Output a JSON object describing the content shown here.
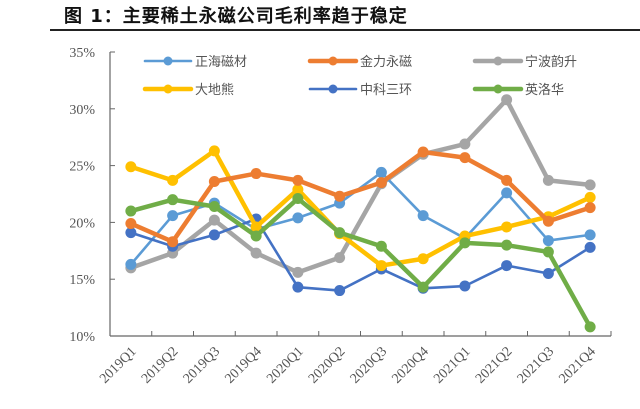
{
  "title": "图 1：主要稀土永磁公司毛利率趋于稳定",
  "chart_data": {
    "type": "line",
    "title": "主要稀土永磁公司毛利率趋于稳定",
    "xlabel": "",
    "ylabel": "",
    "ylim": [
      10,
      35
    ],
    "yticks": [
      "10%",
      "15%",
      "20%",
      "25%",
      "30%",
      "35%"
    ],
    "grid": false,
    "legend_position": "top",
    "categories": [
      "2019Q1",
      "2019Q2",
      "2019Q3",
      "2019Q4",
      "2020Q1",
      "2020Q2",
      "2020Q3",
      "2020Q4",
      "2021Q1",
      "2021Q2",
      "2021Q3",
      "2021Q4"
    ],
    "series": [
      {
        "name": "正海磁材",
        "color": "#5B9BD5",
        "values": [
          16.3,
          20.6,
          21.7,
          19.4,
          20.4,
          21.7,
          24.4,
          20.6,
          18.6,
          22.6,
          18.4,
          18.9
        ]
      },
      {
        "name": "金力永磁",
        "color": "#ED7D31",
        "values": [
          19.9,
          18.3,
          23.6,
          24.3,
          23.7,
          22.3,
          23.5,
          26.2,
          25.7,
          23.7,
          20.1,
          21.3
        ]
      },
      {
        "name": "宁波韵升",
        "color": "#A5A5A5",
        "values": [
          16.0,
          17.3,
          20.2,
          17.3,
          15.6,
          16.9,
          23.4,
          26.0,
          26.9,
          30.8,
          23.7,
          23.3
        ]
      },
      {
        "name": "大地熊",
        "color": "#FFC000",
        "values": [
          24.9,
          23.7,
          26.3,
          19.6,
          22.9,
          19.0,
          16.2,
          16.8,
          18.8,
          19.6,
          20.5,
          22.2
        ]
      },
      {
        "name": "中科三环",
        "color": "#4472C4",
        "values": [
          19.1,
          17.9,
          18.9,
          20.3,
          14.3,
          14.0,
          15.9,
          14.2,
          14.4,
          16.2,
          15.5,
          17.8
        ]
      },
      {
        "name": "英洛华",
        "color": "#70AD47",
        "values": [
          21.0,
          22.0,
          21.4,
          18.8,
          22.1,
          19.1,
          17.9,
          14.3,
          18.2,
          18.0,
          17.4,
          10.8
        ]
      }
    ]
  }
}
